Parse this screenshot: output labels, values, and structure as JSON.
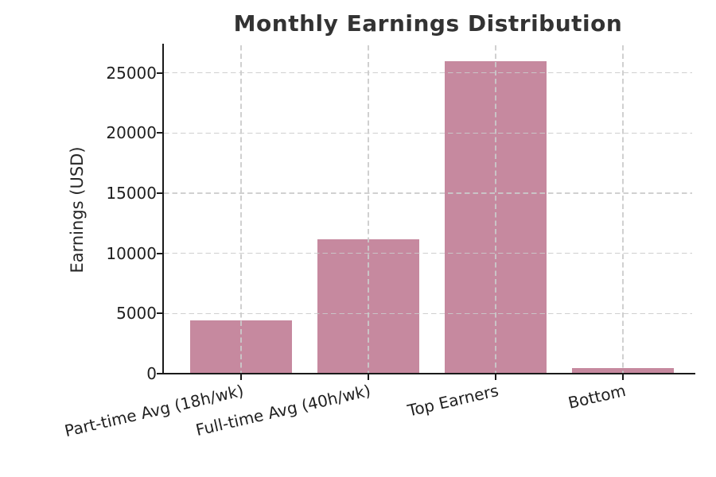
{
  "chart_data": {
    "type": "bar",
    "title": "Monthly Earnings Distribution",
    "xlabel": "",
    "ylabel": "Earnings (USD)",
    "categories": [
      "Part-time Avg (18h/wk)",
      "Full-time Avg (40h/wk)",
      "Top Earners",
      "Bottom"
    ],
    "values": [
      4400,
      11200,
      26000,
      450
    ],
    "yticks": [
      0,
      5000,
      10000,
      15000,
      20000,
      25000
    ],
    "ylim": [
      0,
      27300
    ],
    "legend_position": "none",
    "grid": "dashed gridlines on both axes, drawn above bars",
    "xtick_rotation_deg": 13,
    "bar_color": "#c6899f",
    "grid_color": "#cbcbcb",
    "axis_color": "#1a1a1a",
    "text_color": "#1f1f1f",
    "title_color": "#333333"
  }
}
